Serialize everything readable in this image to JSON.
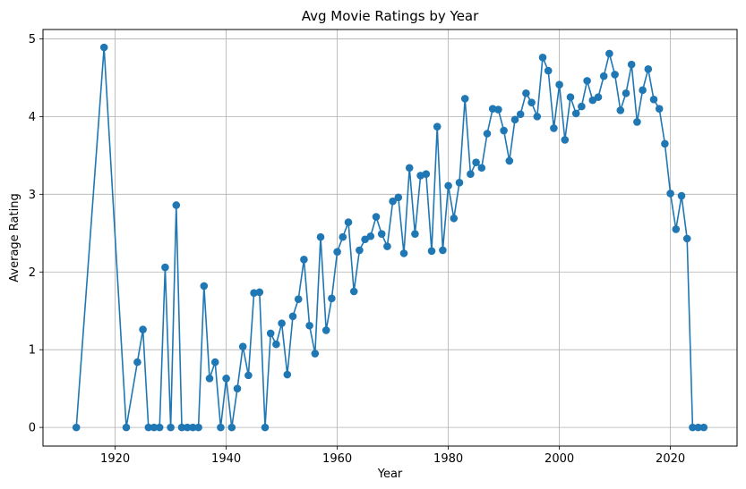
{
  "chart_data": {
    "type": "line",
    "title": "Avg Movie Ratings by Year",
    "xlabel": "Year",
    "ylabel": "Average Rating",
    "xlim": [
      1907,
      2032
    ],
    "ylim": [
      -0.24,
      5.12
    ],
    "xticks": [
      1920,
      1940,
      1960,
      1980,
      2000,
      2020
    ],
    "yticks": [
      0,
      1,
      2,
      3,
      4,
      5
    ],
    "grid": true,
    "color": "#1f77b4",
    "marker": "circle",
    "series": [
      {
        "x": [
          1913,
          1918,
          1922,
          1924,
          1925,
          1926,
          1927,
          1928,
          1929,
          1930,
          1931,
          1932,
          1933,
          1934,
          1935,
          1936,
          1937,
          1938,
          1939,
          1940,
          1941,
          1942,
          1943,
          1944,
          1945,
          1946,
          1947,
          1948,
          1949,
          1950,
          1951,
          1952,
          1953,
          1954,
          1955,
          1956,
          1957,
          1958,
          1959,
          1960,
          1961,
          1962,
          1963,
          1964,
          1965,
          1966,
          1967,
          1968,
          1969,
          1970,
          1971,
          1972,
          1973,
          1974,
          1975,
          1976,
          1977,
          1978,
          1979,
          1980,
          1981,
          1982,
          1983,
          1984,
          1985,
          1986,
          1987,
          1988,
          1989,
          1990,
          1991,
          1992,
          1993,
          1994,
          1995,
          1996,
          1997,
          1998,
          1999,
          2000,
          2001,
          2002,
          2003,
          2004,
          2005,
          2006,
          2007,
          2008,
          2009,
          2010,
          2011,
          2012,
          2013,
          2014,
          2015,
          2016,
          2017,
          2018,
          2019,
          2020,
          2021,
          2022,
          2023,
          2024,
          2025,
          2026
        ],
        "y": [
          0,
          4.89,
          0,
          0.84,
          1.26,
          0,
          0,
          0,
          2.06,
          0,
          2.86,
          0,
          0,
          0,
          0,
          1.82,
          0.63,
          0.84,
          0,
          0.63,
          0,
          0.5,
          1.04,
          0.67,
          1.73,
          1.74,
          0,
          1.21,
          1.07,
          1.34,
          0.68,
          1.43,
          1.65,
          2.16,
          1.31,
          0.95,
          2.45,
          1.25,
          1.66,
          2.26,
          2.45,
          2.64,
          1.75,
          2.28,
          2.42,
          2.46,
          2.71,
          2.49,
          2.33,
          2.91,
          2.96,
          2.24,
          3.34,
          2.49,
          3.24,
          3.26,
          2.27,
          3.87,
          2.28,
          3.11,
          2.69,
          3.15,
          4.23,
          3.26,
          3.41,
          3.34,
          3.78,
          4.1,
          4.09,
          3.82,
          3.43,
          3.96,
          4.03,
          4.3,
          4.18,
          4.0,
          4.76,
          4.59,
          3.85,
          4.41,
          3.7,
          4.25,
          4.04,
          4.13,
          4.46,
          4.21,
          4.25,
          4.52,
          4.81,
          4.54,
          4.08,
          4.3,
          4.67,
          3.93,
          4.34,
          4.61,
          4.22,
          4.1,
          3.65,
          3.01,
          2.55,
          2.98,
          2.43,
          0,
          0,
          0
        ]
      }
    ]
  }
}
